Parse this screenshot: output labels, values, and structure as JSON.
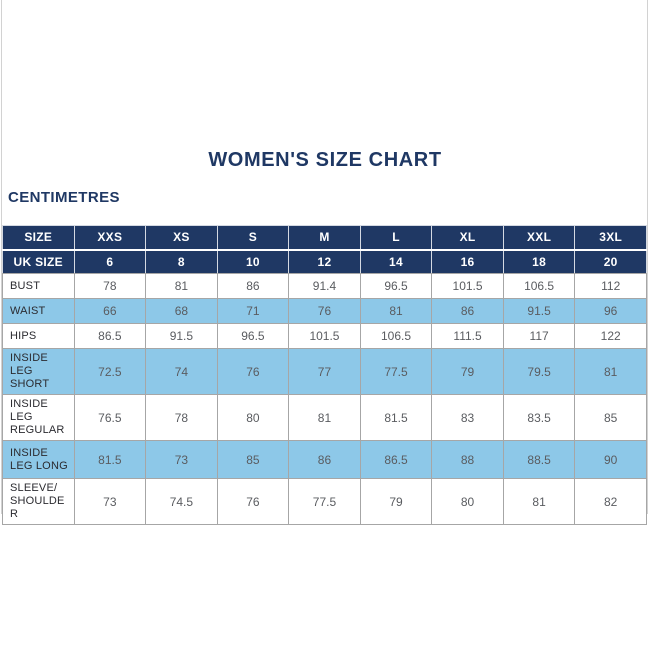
{
  "page": {
    "title": "WOMEN'S SIZE CHART",
    "units_label": "CENTIMETRES"
  },
  "table": {
    "header": {
      "label": "SIZE",
      "sizes": [
        "XXS",
        "XS",
        "S",
        "M",
        "L",
        "XL",
        "XXL",
        "3XL"
      ]
    },
    "uk": {
      "label": "UK SIZE",
      "values": [
        "6",
        "8",
        "10",
        "12",
        "14",
        "16",
        "18",
        "20"
      ]
    },
    "rows": [
      {
        "label": "BUST",
        "values": [
          "78",
          "81",
          "86",
          "91.4",
          "96.5",
          "101.5",
          "106.5",
          "112"
        ]
      },
      {
        "label": "WAIST",
        "values": [
          "66",
          "68",
          "71",
          "76",
          "81",
          "86",
          "91.5",
          "96"
        ]
      },
      {
        "label": "HIPS",
        "values": [
          "86.5",
          "91.5",
          "96.5",
          "101.5",
          "106.5",
          "111.5",
          "117",
          "122"
        ]
      },
      {
        "label": "INSIDE LEG SHORT",
        "values": [
          "72.5",
          "74",
          "76",
          "77",
          "77.5",
          "79",
          "79.5",
          "81"
        ]
      },
      {
        "label": "INSIDE LEG REGULAR",
        "values": [
          "76.5",
          "78",
          "80",
          "81",
          "81.5",
          "83",
          "83.5",
          "85"
        ]
      },
      {
        "label": "INSIDE LEG LONG",
        "values": [
          "81.5",
          "73",
          "85",
          "86",
          "86.5",
          "88",
          "88.5",
          "90"
        ]
      },
      {
        "label": "SLEEVE/SHOULDER",
        "values": [
          "73",
          "74.5",
          "76",
          "77.5",
          "79",
          "80",
          "81",
          "82"
        ]
      }
    ]
  },
  "colors": {
    "navy": "#1f3864",
    "light_blue": "#8dc8e8",
    "label_text": "#2b2b30",
    "value_text": "#5a5c60",
    "grid_border": "#a6a6a6"
  },
  "chart_data": {
    "type": "table",
    "title": "WOMEN'S SIZE CHART",
    "units": "CENTIMETRES",
    "columns": [
      "SIZE",
      "XXS",
      "XS",
      "S",
      "M",
      "L",
      "XL",
      "XXL",
      "3XL"
    ],
    "rows": [
      [
        "UK SIZE",
        6,
        8,
        10,
        12,
        14,
        16,
        18,
        20
      ],
      [
        "BUST",
        78,
        81,
        86,
        91.4,
        96.5,
        101.5,
        106.5,
        112
      ],
      [
        "WAIST",
        66,
        68,
        71,
        76,
        81,
        86,
        91.5,
        96
      ],
      [
        "HIPS",
        86.5,
        91.5,
        96.5,
        101.5,
        106.5,
        111.5,
        117,
        122
      ],
      [
        "INSIDE LEG SHORT",
        72.5,
        74,
        76,
        77,
        77.5,
        79,
        79.5,
        81
      ],
      [
        "INSIDE LEG REGULAR",
        76.5,
        78,
        80,
        81,
        81.5,
        83,
        83.5,
        85
      ],
      [
        "INSIDE LEG LONG",
        81.5,
        73,
        85,
        86,
        86.5,
        88,
        88.5,
        90
      ],
      [
        "SLEEVE/SHOULDER",
        73,
        74.5,
        76,
        77.5,
        79,
        80,
        81,
        82
      ]
    ]
  }
}
